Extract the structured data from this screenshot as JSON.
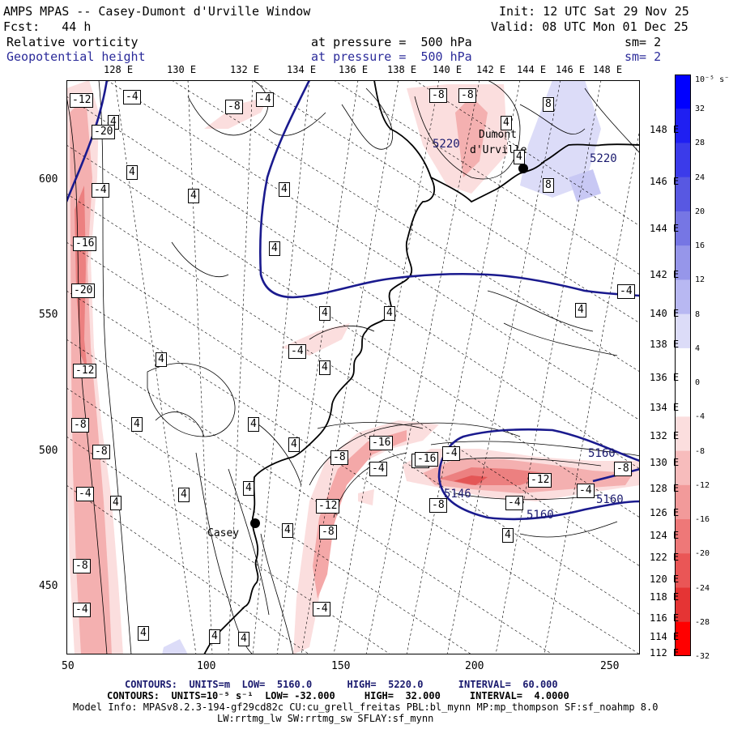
{
  "header": {
    "title": "AMPS MPAS -- Casey-Dumont d'Urville Window",
    "init": "Init: 12 UTC Sat 29 Nov 25",
    "fcst": "Fcst:   44 h",
    "valid": "Valid: 08 UTC Mon 01 Dec 25",
    "field1_name": "Relative vorticity",
    "field1_level": "at pressure =  500 hPa",
    "field1_sm": "sm= 2",
    "field2_name": "Geopotential height",
    "field2_level": "at pressure =  500 hPa",
    "field2_sm": "sm= 2"
  },
  "top_lon_labels": [
    "128 E",
    "130 E",
    "132 E",
    "134 E",
    "136 E",
    "138 E",
    "140 E",
    "142 E",
    "144 E",
    "146 E",
    "148 E"
  ],
  "right_lon_labels": [
    "148 E",
    "146 E",
    "144 E",
    "142 E",
    "140 E",
    "138 E",
    "136 E",
    "134 E",
    "132 E",
    "130 E",
    "128 E",
    "126 E",
    "124 E",
    "122 E",
    "120 E",
    "118 E",
    "116 E",
    "114 E",
    "112 E"
  ],
  "x_axis": [
    "50",
    "100",
    "150",
    "200",
    "250"
  ],
  "y_axis": [
    "600",
    "550",
    "500",
    "450"
  ],
  "colorbar": {
    "unit": "10⁻⁵ s⁻¹",
    "labels": [
      "32",
      "28",
      "24",
      "20",
      "16",
      "12",
      "8",
      "4",
      "0",
      "-4",
      "-8",
      "-12",
      "-16",
      "-20",
      "-24",
      "-28",
      "-32"
    ],
    "colors": [
      "#0000ff",
      "#1f1ff2",
      "#3b3bea",
      "#5858e2",
      "#7676e4",
      "#9696ea",
      "#b8b8f2",
      "#dcdcf8",
      "#ffffff",
      "#ffffff",
      "#fbdede",
      "#f7bcbc",
      "#f29a9a",
      "#ee7878",
      "#ea5656",
      "#e53434",
      "#ff0000"
    ]
  },
  "map_labels": {
    "casey": "Casey",
    "dumont": "Dumont",
    "durville": "d'Urville"
  },
  "height_labels": [
    "5220",
    "5220",
    "5160",
    "5146",
    "5160",
    "5160"
  ],
  "vort_labels": [
    "-12",
    "-4",
    "-8",
    "-4",
    "4",
    "-8",
    "-8",
    "8",
    "-20",
    "4",
    "-4",
    "4",
    "4",
    "4",
    "-16",
    "-16",
    "4",
    "-20",
    "4",
    "4",
    "-4",
    "4",
    "-12",
    "4",
    "-8",
    "4",
    "4",
    "-16",
    "-8",
    "4",
    "-8",
    "-4",
    "-4",
    "-4",
    "4",
    "4",
    "4",
    "-8",
    "-12",
    "-8",
    "4",
    "-4",
    "-16",
    "-12",
    "-4",
    "-8",
    "-8",
    "4",
    "-4",
    "-8",
    "-4",
    "4",
    "4",
    "4",
    "-4",
    "8",
    "4",
    "4"
  ],
  "footer": {
    "line1_label": "CONTOURS:  UNITS=m  LOW=  5160.0      HIGH=  5220.0      INTERVAL=  60.000",
    "line2_label": "CONTOURS:  UNITS=10⁻⁵ s⁻¹  LOW= -32.000     HIGH=  32.000     INTERVAL=  4.0000",
    "model_info": "Model Info: MPASv8.2.3-194-gf29cd82c CU:cu_grell_freitas PBL:bl_mynn MP:mp_thompson SF:sf_noahmp 8.0",
    "model_info2": "LW:rrtmg_lw SW:rrtmg_sw SFLAY:sf_mynn"
  }
}
